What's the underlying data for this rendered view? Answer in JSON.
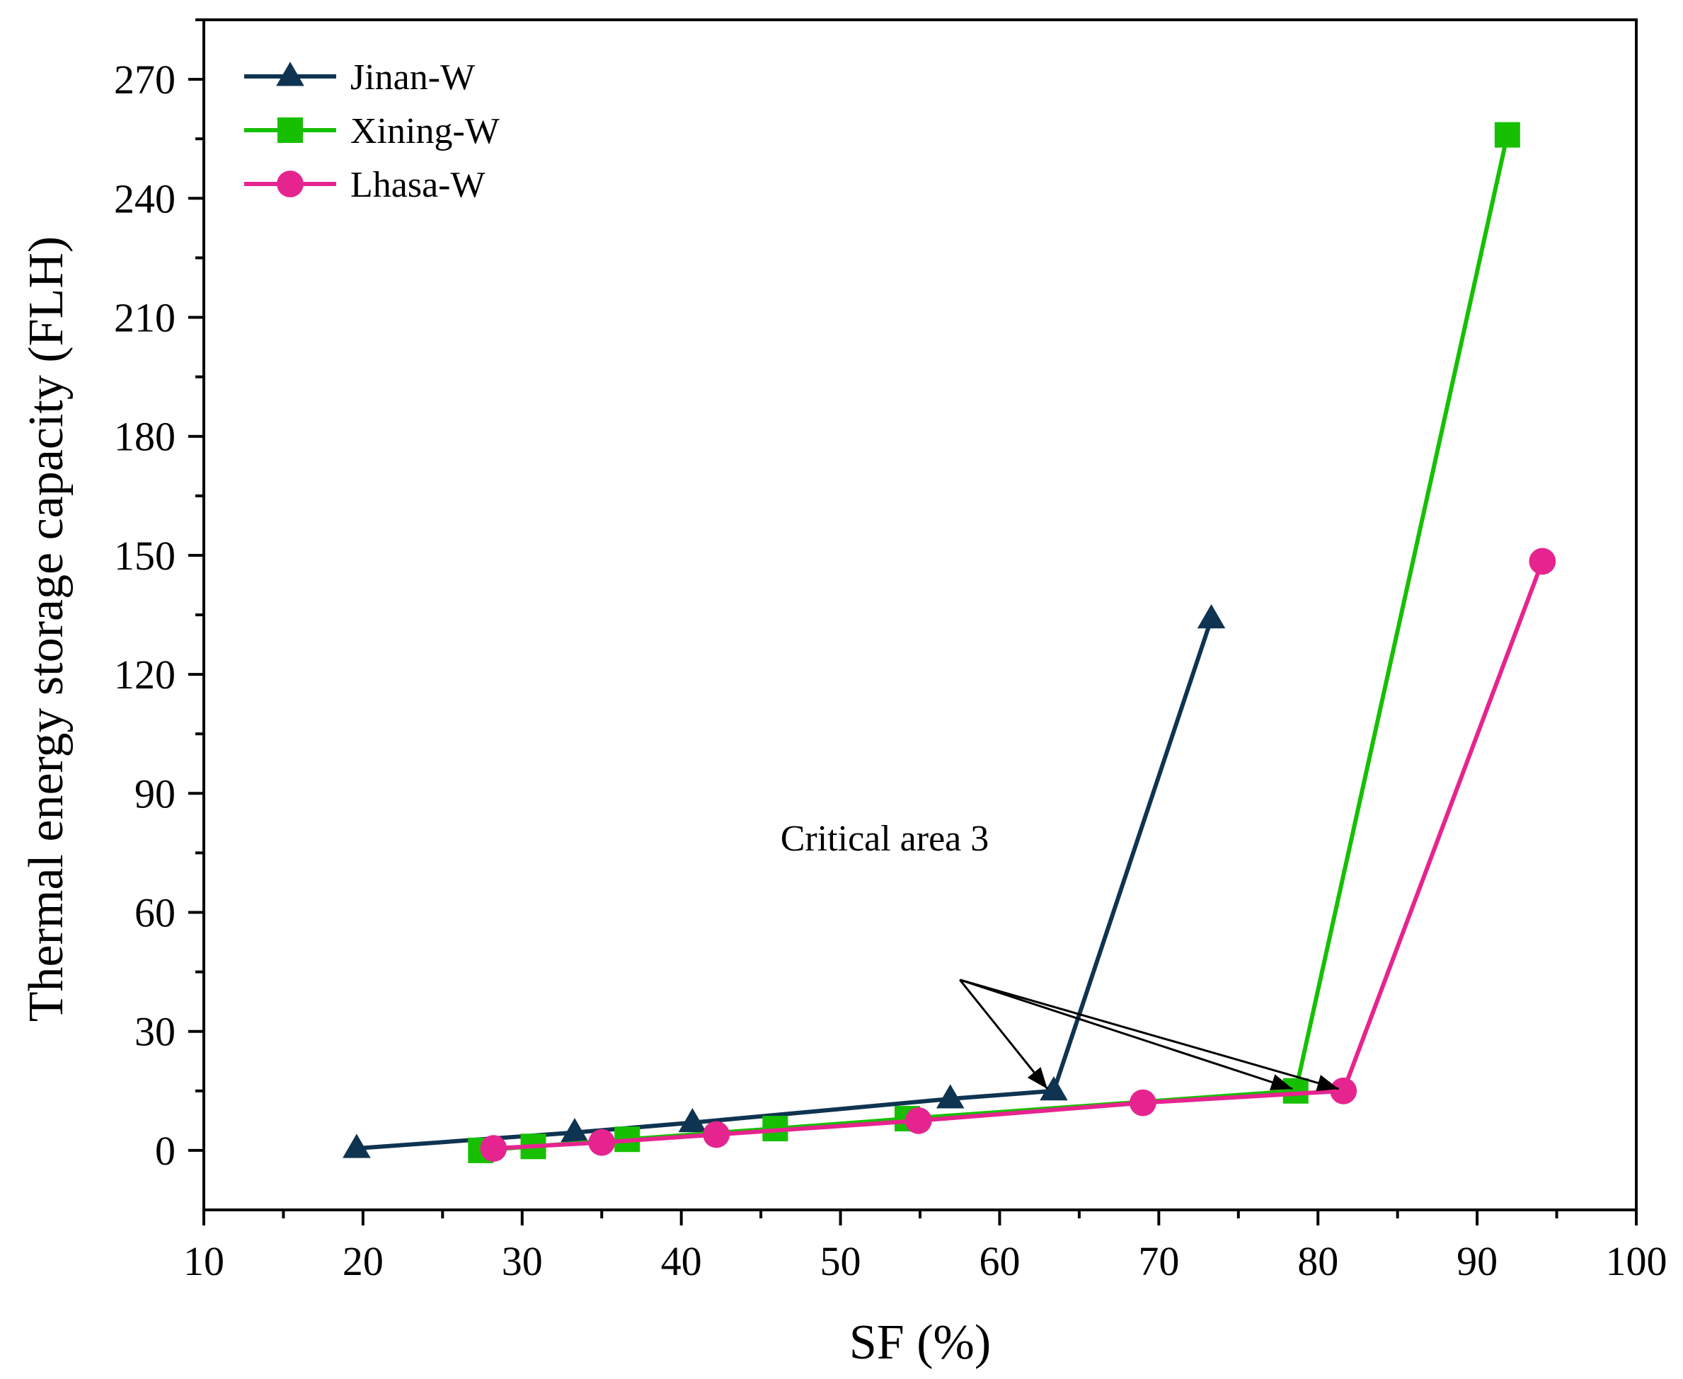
{
  "chart_data": {
    "type": "line",
    "title": "",
    "xlabel": "SF (%)",
    "ylabel": "Thermal energy storage capacity (FLH)",
    "xlim": [
      10,
      100
    ],
    "ylim": [
      -15,
      285
    ],
    "xticks": [
      10,
      20,
      30,
      40,
      50,
      60,
      70,
      80,
      90,
      100
    ],
    "yticks": [
      0,
      30,
      60,
      90,
      120,
      150,
      180,
      210,
      240,
      270
    ],
    "grid": false,
    "legend_position": "top-left",
    "series": [
      {
        "name": "Jinan-W",
        "color": "#0f3451",
        "marker": "triangle",
        "x": [
          19.6,
          33.3,
          40.7,
          56.9,
          63.4,
          73.3
        ],
        "y": [
          0.5,
          4.5,
          7.0,
          13.0,
          15.0,
          134.0
        ]
      },
      {
        "name": "Xining-W",
        "color": "#16c000",
        "marker": "square",
        "x": [
          27.4,
          30.7,
          36.6,
          45.9,
          54.2,
          78.6,
          91.9
        ],
        "y": [
          0.0,
          1.0,
          2.8,
          5.5,
          8.0,
          15.0,
          256.0
        ]
      },
      {
        "name": "Lhasa-W",
        "color": "#e6248f",
        "marker": "circle",
        "x": [
          28.2,
          35.0,
          42.2,
          54.9,
          69.0,
          81.6,
          94.1
        ],
        "y": [
          0.5,
          2.0,
          4.0,
          7.5,
          12.0,
          15.0,
          148.5
        ]
      }
    ],
    "annotations": [
      {
        "text": "Critical area 3",
        "arrow_from": [
          57.5,
          43
        ],
        "arrow_targets": [
          [
            63.0,
            15.5
          ],
          [
            78.4,
            15.5
          ],
          [
            81.3,
            15.5
          ]
        ]
      }
    ]
  }
}
